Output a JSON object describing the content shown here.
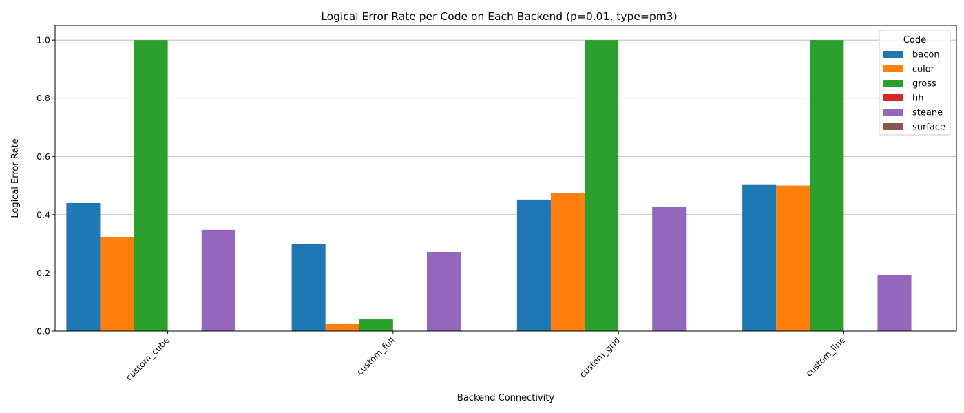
{
  "chart_data": {
    "type": "bar",
    "title": "Logical Error Rate per Code on Each Backend (p=0.01, type=pm3)",
    "xlabel": "Backend Connectivity",
    "ylabel": "Logical Error Rate",
    "categories": [
      "custom_cube",
      "custom_full",
      "custom_grid",
      "custom_line"
    ],
    "ylim": [
      0,
      1.05
    ],
    "yticks": [
      0.0,
      0.2,
      0.4,
      0.6,
      0.8,
      1.0
    ],
    "ytick_labels": [
      "0.0",
      "0.2",
      "0.4",
      "0.6",
      "0.8",
      "1.0"
    ],
    "grid": "horizontal",
    "xtick_rotation_deg": 45,
    "legend": {
      "title": "Code",
      "placement": "top-right"
    },
    "series": [
      {
        "name": "bacon",
        "color": "#1f77b4",
        "values": [
          0.44,
          0.3,
          0.452,
          0.502
        ]
      },
      {
        "name": "color",
        "color": "#ff7f0e",
        "values": [
          0.324,
          0.024,
          0.473,
          0.5
        ]
      },
      {
        "name": "gross",
        "color": "#2ca02c",
        "values": [
          1.0,
          0.04,
          1.0,
          1.0
        ]
      },
      {
        "name": "hh",
        "color": "#d62728",
        "values": [
          0.0,
          0.0,
          0.0,
          0.0
        ]
      },
      {
        "name": "steane",
        "color": "#9467bd",
        "values": [
          0.348,
          0.272,
          0.428,
          0.192
        ]
      },
      {
        "name": "surface",
        "color": "#8c564b",
        "values": [
          0.0,
          0.0,
          0.0,
          0.0
        ]
      }
    ]
  }
}
